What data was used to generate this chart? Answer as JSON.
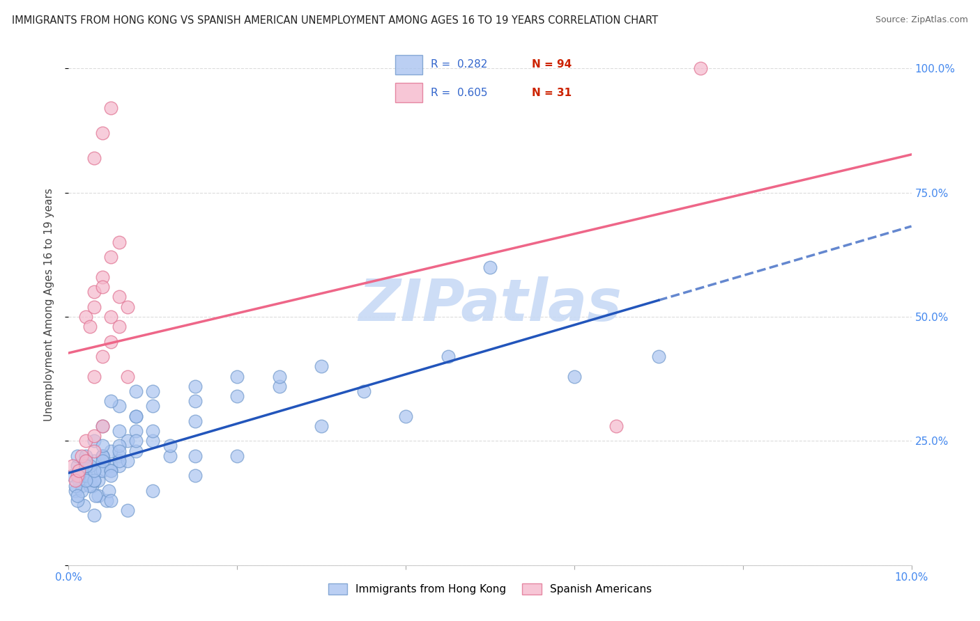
{
  "title": "IMMIGRANTS FROM HONG KONG VS SPANISH AMERICAN UNEMPLOYMENT AMONG AGES 16 TO 19 YEARS CORRELATION CHART",
  "source": "Source: ZipAtlas.com",
  "ylabel": "Unemployment Among Ages 16 to 19 years",
  "legend_r1": "0.282",
  "legend_n1": "94",
  "legend_r2": "0.605",
  "legend_n2": "31",
  "legend_label1": "Immigrants from Hong Kong",
  "legend_label2": "Spanish Americans",
  "blue_color": "#aac4f0",
  "blue_edge_color": "#7099cc",
  "pink_color": "#f5b8cc",
  "pink_edge_color": "#e07090",
  "blue_line_color": "#2255bb",
  "pink_line_color": "#ee6688",
  "r_value_color": "#3366cc",
  "n_value_color": "#cc2200",
  "watermark": "ZIPatlas",
  "watermark_color": "#c8daf5",
  "right_tick_color": "#4488ee",
  "x_tick_color": "#4488ee",
  "background_color": "#ffffff",
  "grid_color": "#cccccc",
  "xlim": [
    0.0,
    0.1
  ],
  "ylim": [
    0.0,
    1.05
  ],
  "blue_scatter_x": [
    0.0005,
    0.001,
    0.0015,
    0.002,
    0.0025,
    0.003,
    0.0035,
    0.004,
    0.0045,
    0.005,
    0.0008,
    0.0012,
    0.0018,
    0.0022,
    0.0028,
    0.0032,
    0.0038,
    0.0042,
    0.0048,
    0.006,
    0.001,
    0.0015,
    0.002,
    0.0025,
    0.003,
    0.0035,
    0.004,
    0.005,
    0.006,
    0.007,
    0.001,
    0.0015,
    0.002,
    0.0025,
    0.003,
    0.004,
    0.005,
    0.006,
    0.007,
    0.008,
    0.0008,
    0.0012,
    0.002,
    0.003,
    0.004,
    0.005,
    0.006,
    0.008,
    0.01,
    0.012,
    0.001,
    0.002,
    0.003,
    0.004,
    0.005,
    0.006,
    0.008,
    0.01,
    0.012,
    0.015,
    0.002,
    0.003,
    0.004,
    0.006,
    0.008,
    0.01,
    0.015,
    0.02,
    0.025,
    0.03,
    0.002,
    0.004,
    0.006,
    0.008,
    0.01,
    0.015,
    0.02,
    0.025,
    0.035,
    0.045,
    0.003,
    0.005,
    0.007,
    0.01,
    0.015,
    0.02,
    0.03,
    0.04,
    0.06,
    0.07,
    0.005,
    0.008,
    0.015,
    0.05
  ],
  "blue_scatter_y": [
    0.18,
    0.2,
    0.16,
    0.21,
    0.17,
    0.19,
    0.14,
    0.22,
    0.13,
    0.2,
    0.15,
    0.17,
    0.12,
    0.2,
    0.16,
    0.14,
    0.19,
    0.21,
    0.15,
    0.22,
    0.22,
    0.18,
    0.2,
    0.16,
    0.21,
    0.17,
    0.19,
    0.23,
    0.2,
    0.25,
    0.13,
    0.15,
    0.18,
    0.2,
    0.17,
    0.22,
    0.19,
    0.24,
    0.21,
    0.27,
    0.16,
    0.18,
    0.2,
    0.17,
    0.22,
    0.19,
    0.21,
    0.23,
    0.25,
    0.22,
    0.14,
    0.17,
    0.19,
    0.21,
    0.18,
    0.23,
    0.25,
    0.27,
    0.24,
    0.29,
    0.22,
    0.25,
    0.28,
    0.32,
    0.3,
    0.35,
    0.33,
    0.38,
    0.36,
    0.4,
    0.2,
    0.24,
    0.27,
    0.3,
    0.32,
    0.36,
    0.34,
    0.38,
    0.35,
    0.42,
    0.1,
    0.13,
    0.11,
    0.15,
    0.18,
    0.22,
    0.28,
    0.3,
    0.38,
    0.42,
    0.33,
    0.35,
    0.22,
    0.6
  ],
  "pink_scatter_x": [
    0.0005,
    0.001,
    0.0015,
    0.002,
    0.003,
    0.0008,
    0.0012,
    0.002,
    0.003,
    0.004,
    0.002,
    0.003,
    0.004,
    0.005,
    0.006,
    0.0025,
    0.003,
    0.004,
    0.005,
    0.006,
    0.003,
    0.004,
    0.005,
    0.006,
    0.007,
    0.003,
    0.004,
    0.005,
    0.007,
    0.065,
    0.075
  ],
  "pink_scatter_y": [
    0.2,
    0.18,
    0.22,
    0.25,
    0.26,
    0.17,
    0.19,
    0.21,
    0.23,
    0.28,
    0.5,
    0.55,
    0.58,
    0.62,
    0.65,
    0.48,
    0.52,
    0.56,
    0.5,
    0.54,
    0.38,
    0.42,
    0.45,
    0.48,
    0.52,
    0.82,
    0.87,
    0.92,
    0.38,
    0.28,
    1.0
  ]
}
